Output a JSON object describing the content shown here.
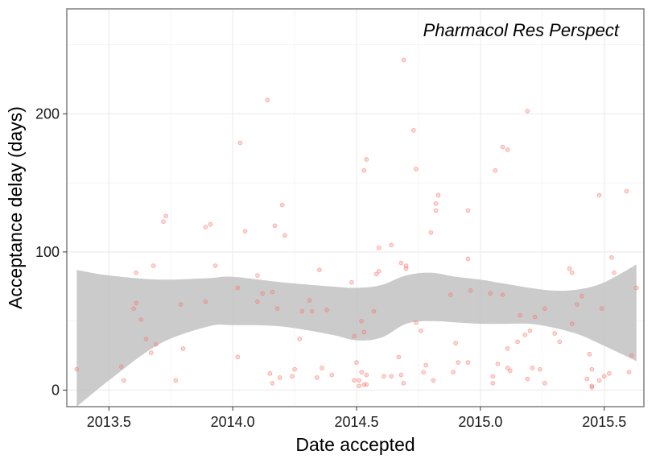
{
  "chart_data": {
    "type": "scatter",
    "annotation": "Pharmacol Res Perspect",
    "xlabel": "Date accepted",
    "ylabel": "Acceptance delay (days)",
    "xlim": [
      2013.33,
      2015.66
    ],
    "ylim": [
      -12,
      276
    ],
    "x_ticks": [
      2013.5,
      2014.0,
      2014.5,
      2015.0,
      2015.5
    ],
    "x_tick_labels": [
      "2013.5",
      "2014.0",
      "2014.5",
      "2015.0",
      "2015.5"
    ],
    "y_ticks": [
      0,
      100,
      200
    ],
    "y_tick_labels": [
      "0",
      "100",
      "200"
    ],
    "grid": true,
    "point_color": "#f8766d",
    "band_color": "#bebebe",
    "points": [
      [
        2013.37,
        15
      ],
      [
        2013.55,
        17
      ],
      [
        2013.56,
        7
      ],
      [
        2013.6,
        59
      ],
      [
        2013.61,
        63
      ],
      [
        2013.61,
        85
      ],
      [
        2013.63,
        51
      ],
      [
        2013.65,
        37
      ],
      [
        2013.67,
        27
      ],
      [
        2013.68,
        90
      ],
      [
        2013.69,
        33
      ],
      [
        2013.72,
        122
      ],
      [
        2013.73,
        126
      ],
      [
        2013.77,
        7
      ],
      [
        2013.79,
        62
      ],
      [
        2013.8,
        30
      ],
      [
        2013.89,
        64
      ],
      [
        2013.89,
        118
      ],
      [
        2013.91,
        120
      ],
      [
        2013.93,
        90
      ],
      [
        2014.02,
        74
      ],
      [
        2014.02,
        24
      ],
      [
        2014.03,
        179
      ],
      [
        2014.05,
        115
      ],
      [
        2014.1,
        83
      ],
      [
        2014.1,
        64
      ],
      [
        2014.12,
        70
      ],
      [
        2014.14,
        210
      ],
      [
        2014.15,
        12
      ],
      [
        2014.16,
        5
      ],
      [
        2014.16,
        71
      ],
      [
        2014.17,
        119
      ],
      [
        2014.18,
        59
      ],
      [
        2014.19,
        9
      ],
      [
        2014.2,
        134
      ],
      [
        2014.21,
        112
      ],
      [
        2014.24,
        10
      ],
      [
        2014.25,
        15
      ],
      [
        2014.27,
        37
      ],
      [
        2014.28,
        57
      ],
      [
        2014.31,
        65
      ],
      [
        2014.32,
        57
      ],
      [
        2014.34,
        9
      ],
      [
        2014.35,
        87
      ],
      [
        2014.36,
        16
      ],
      [
        2014.38,
        58
      ],
      [
        2014.4,
        11
      ],
      [
        2014.48,
        78
      ],
      [
        2014.49,
        7
      ],
      [
        2014.49,
        39
      ],
      [
        2014.5,
        20
      ],
      [
        2014.51,
        3
      ],
      [
        2014.51,
        7
      ],
      [
        2014.52,
        50
      ],
      [
        2014.52,
        13
      ],
      [
        2014.53,
        4
      ],
      [
        2014.53,
        42
      ],
      [
        2014.53,
        159
      ],
      [
        2014.54,
        167
      ],
      [
        2014.54,
        11
      ],
      [
        2014.54,
        4
      ],
      [
        2014.57,
        57
      ],
      [
        2014.58,
        84
      ],
      [
        2014.59,
        86
      ],
      [
        2014.59,
        103
      ],
      [
        2014.61,
        10
      ],
      [
        2014.64,
        105
      ],
      [
        2014.64,
        10
      ],
      [
        2014.67,
        24
      ],
      [
        2014.68,
        11
      ],
      [
        2014.68,
        92
      ],
      [
        2014.69,
        239
      ],
      [
        2014.69,
        5
      ],
      [
        2014.7,
        88
      ],
      [
        2014.7,
        90
      ],
      [
        2014.73,
        188
      ],
      [
        2014.74,
        49
      ],
      [
        2014.74,
        160
      ],
      [
        2014.76,
        43
      ],
      [
        2014.77,
        13
      ],
      [
        2014.78,
        18
      ],
      [
        2014.8,
        114
      ],
      [
        2014.81,
        7
      ],
      [
        2014.82,
        135
      ],
      [
        2014.82,
        130
      ],
      [
        2014.83,
        141
      ],
      [
        2014.88,
        69
      ],
      [
        2014.89,
        13
      ],
      [
        2014.9,
        34
      ],
      [
        2014.91,
        20
      ],
      [
        2014.95,
        20
      ],
      [
        2014.95,
        130
      ],
      [
        2014.95,
        95
      ],
      [
        2014.96,
        72
      ],
      [
        2015.04,
        70
      ],
      [
        2015.05,
        10
      ],
      [
        2015.05,
        5
      ],
      [
        2015.06,
        159
      ],
      [
        2015.07,
        19
      ],
      [
        2015.09,
        69
      ],
      [
        2015.09,
        176
      ],
      [
        2015.11,
        174
      ],
      [
        2015.11,
        30
      ],
      [
        2015.11,
        16
      ],
      [
        2015.12,
        14
      ],
      [
        2015.15,
        35
      ],
      [
        2015.16,
        54
      ],
      [
        2015.18,
        40
      ],
      [
        2015.19,
        202
      ],
      [
        2015.19,
        8
      ],
      [
        2015.2,
        43
      ],
      [
        2015.21,
        16
      ],
      [
        2015.22,
        53
      ],
      [
        2015.24,
        15
      ],
      [
        2015.26,
        59
      ],
      [
        2015.26,
        5
      ],
      [
        2015.3,
        41
      ],
      [
        2015.32,
        35
      ],
      [
        2015.36,
        88
      ],
      [
        2015.37,
        85
      ],
      [
        2015.37,
        48
      ],
      [
        2015.39,
        62
      ],
      [
        2015.41,
        68
      ],
      [
        2015.43,
        8
      ],
      [
        2015.44,
        26
      ],
      [
        2015.45,
        15
      ],
      [
        2015.45,
        3
      ],
      [
        2015.45,
        2
      ],
      [
        2015.48,
        141
      ],
      [
        2015.48,
        7
      ],
      [
        2015.49,
        59
      ],
      [
        2015.5,
        10
      ],
      [
        2015.52,
        12
      ],
      [
        2015.53,
        96
      ],
      [
        2015.54,
        85
      ],
      [
        2015.59,
        144
      ],
      [
        2015.6,
        13
      ],
      [
        2015.61,
        25
      ],
      [
        2015.63,
        74
      ]
    ],
    "band": {
      "x": [
        2013.37,
        2013.5,
        2013.7,
        2013.9,
        2014.0,
        2014.2,
        2014.4,
        2014.5,
        2014.6,
        2014.7,
        2014.8,
        2014.9,
        2015.0,
        2015.1,
        2015.2,
        2015.3,
        2015.4,
        2015.5,
        2015.63
      ],
      "upper": [
        87,
        83,
        80,
        81,
        82,
        78,
        75,
        74,
        76,
        83,
        85,
        82,
        80,
        77,
        74,
        72,
        73,
        78,
        91
      ],
      "lower": [
        -12,
        7,
        33,
        46,
        47,
        46,
        40,
        36,
        38,
        48,
        50,
        49,
        48,
        48,
        48,
        45,
        40,
        32,
        21
      ]
    }
  }
}
